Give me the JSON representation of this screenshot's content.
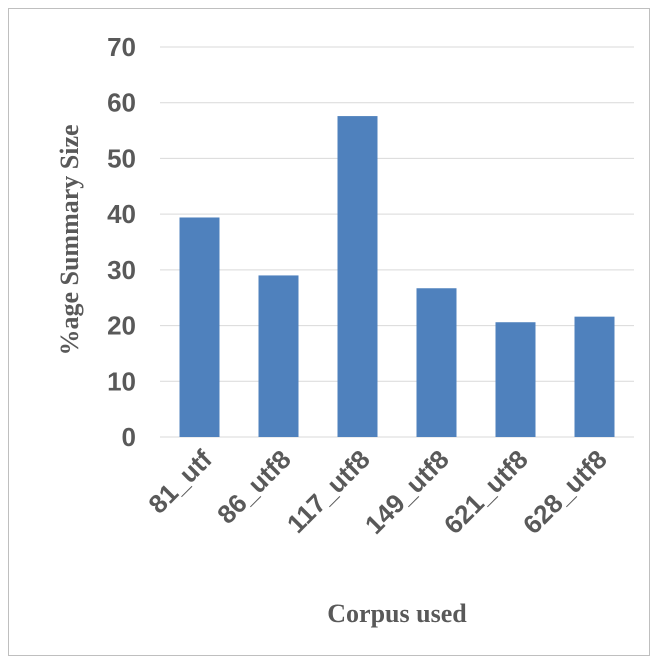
{
  "chart_data": {
    "type": "bar",
    "title": "",
    "xlabel": "Corpus used",
    "ylabel": "%age Summary Size",
    "categories": [
      "81_utf",
      "86_utf8",
      "117_utf8",
      "149_utf8",
      "621_utf8",
      "628_utf8"
    ],
    "values": [
      39.4,
      29,
      57.6,
      26.7,
      20.6,
      21.6
    ],
    "ylim": [
      0,
      70
    ],
    "yticks": [
      "0",
      "10",
      "20",
      "30",
      "40",
      "50",
      "60",
      "70"
    ],
    "grid": true,
    "legend": "none",
    "colors": {
      "bar": "#4f81bd",
      "grid": "#d9d9d9",
      "text": "#595959"
    }
  }
}
